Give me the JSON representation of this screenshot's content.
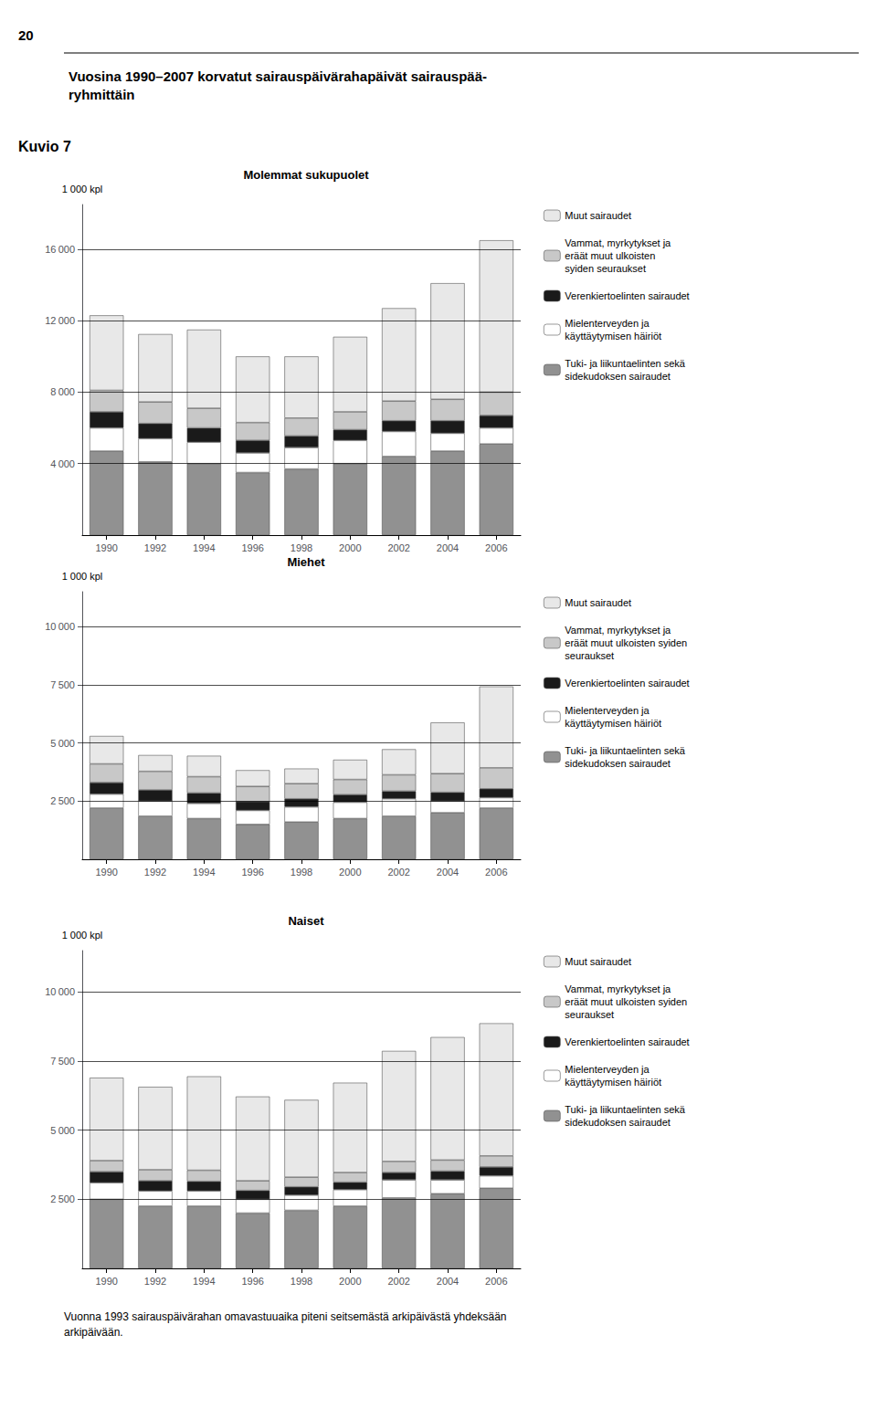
{
  "title": "Vuosina 1990–2007 korvatut sairauspäivärahapäivät sairauspää-\nryhmittäin",
  "annotations": [
    "20",
    "Kuvio 7",
    "Vuonna 1993 sairauspäivärahan omavastuuaika piteni seitsemästä arkipäivästä yhdeksään\narkipäivään."
  ],
  "chart_data": [
    {
      "type": "bar",
      "title": "Molemmat sukupuolet",
      "ylabel": "1 000 kpl",
      "categories": [
        1990,
        1992,
        1994,
        1996,
        1998,
        2000,
        2002,
        2004,
        2006
      ],
      "stacked": true,
      "grid": true,
      "legend": "right",
      "ylim": [
        0,
        18500
      ],
      "yticks": [
        {
          "value": 4000,
          "label": "4 000"
        },
        {
          "value": 8000,
          "label": "8 000"
        },
        {
          "value": 12000,
          "label": "12 000"
        },
        {
          "value": 16000,
          "label": "16 000"
        }
      ],
      "series": [
        {
          "name": "Tuki- ja liikuntaelinten sekä\nsidekudoksen sairaudet",
          "color": "#919191",
          "values": [
            4700,
            4100,
            4000,
            3500,
            3700,
            4000,
            4400,
            4700,
            5100
          ]
        },
        {
          "name": "Mielenterveyden ja\nkäyttäytymisen häiriöt",
          "color": "#ffffff",
          "values": [
            1300,
            1300,
            1200,
            1100,
            1200,
            1300,
            1400,
            1000,
            900
          ]
        },
        {
          "name": "Verenkiertoelinten sairaudet",
          "color": "#1a1a1a",
          "values": [
            900,
            850,
            800,
            700,
            650,
            600,
            600,
            700,
            700
          ]
        },
        {
          "name": "Vammat, myrkytykset ja\neräät muut ulkoisten\nsyiden seuraukset",
          "color": "#c8c8c8",
          "values": [
            1200,
            1200,
            1100,
            1000,
            1000,
            1000,
            1100,
            1200,
            1300
          ]
        },
        {
          "name": "Muut sairaudet",
          "color": "#e8e8e8",
          "values": [
            4200,
            3800,
            4400,
            3700,
            3450,
            4200,
            5200,
            6500,
            8500
          ]
        }
      ]
    },
    {
      "type": "bar",
      "title": "Miehet",
      "ylabel": "1 000 kpl",
      "categories": [
        1990,
        1992,
        1994,
        1996,
        1998,
        2000,
        2002,
        2004,
        2006
      ],
      "stacked": true,
      "grid": true,
      "legend": "right",
      "ylim": [
        0,
        11500
      ],
      "yticks": [
        {
          "value": 2500,
          "label": "2 500"
        },
        {
          "value": 5000,
          "label": "5 000"
        },
        {
          "value": 7500,
          "label": "7 500"
        },
        {
          "value": 10000,
          "label": "10 000"
        }
      ],
      "series": [
        {
          "name": "Tuki- ja liikuntaelinten sekä\nsidekudoksen sairaudet",
          "color": "#919191",
          "values": [
            2200,
            1850,
            1750,
            1500,
            1600,
            1750,
            1850,
            2000,
            2200
          ]
        },
        {
          "name": "Mielenterveyden ja\nkäyttäytymisen häiriöt",
          "color": "#ffffff",
          "values": [
            600,
            650,
            650,
            600,
            650,
            700,
            750,
            500,
            450
          ]
        },
        {
          "name": "Verenkiertoelinten sairaudet",
          "color": "#1a1a1a",
          "values": [
            500,
            480,
            450,
            380,
            350,
            330,
            330,
            380,
            380
          ]
        },
        {
          "name": "Vammat, myrkytykset ja\neräät muut ulkoisten syiden\nseuraukset",
          "color": "#c8c8c8",
          "values": [
            800,
            800,
            700,
            650,
            650,
            650,
            700,
            800,
            900
          ]
        },
        {
          "name": "Muut sairaudet",
          "color": "#e8e8e8",
          "values": [
            1200,
            700,
            900,
            700,
            650,
            850,
            1100,
            2200,
            3500
          ]
        }
      ]
    },
    {
      "type": "bar",
      "title": "Naiset",
      "ylabel": "1 000 kpl",
      "categories": [
        1990,
        1992,
        1994,
        1996,
        1998,
        2000,
        2002,
        2004,
        2006
      ],
      "stacked": true,
      "grid": true,
      "legend": "right",
      "ylim": [
        0,
        11500
      ],
      "yticks": [
        {
          "value": 2500,
          "label": "2 500"
        },
        {
          "value": 5000,
          "label": "5 000"
        },
        {
          "value": 7500,
          "label": "7 500"
        },
        {
          "value": 10000,
          "label": "10 000"
        }
      ],
      "series": [
        {
          "name": "Tuki- ja liikuntaelinten sekä\nsidekudoksen sairaudet",
          "color": "#919191",
          "values": [
            2500,
            2250,
            2250,
            2000,
            2100,
            2250,
            2550,
            2700,
            2900
          ]
        },
        {
          "name": "Mielenterveyden ja\nkäyttäytymisen häiriöt",
          "color": "#ffffff",
          "values": [
            600,
            550,
            550,
            500,
            550,
            600,
            650,
            500,
            450
          ]
        },
        {
          "name": "Verenkiertoelinten sairaudet",
          "color": "#1a1a1a",
          "values": [
            400,
            370,
            350,
            320,
            300,
            270,
            270,
            320,
            320
          ]
        },
        {
          "name": "Vammat, myrkytykset ja\neräät muut ulkoisten syiden\nseuraukset",
          "color": "#c8c8c8",
          "values": [
            400,
            400,
            400,
            350,
            350,
            350,
            400,
            400,
            400
          ]
        },
        {
          "name": "Muut sairaudet",
          "color": "#e8e8e8",
          "values": [
            3000,
            3000,
            3400,
            3050,
            2800,
            3250,
            4000,
            4450,
            4800
          ]
        }
      ]
    }
  ]
}
